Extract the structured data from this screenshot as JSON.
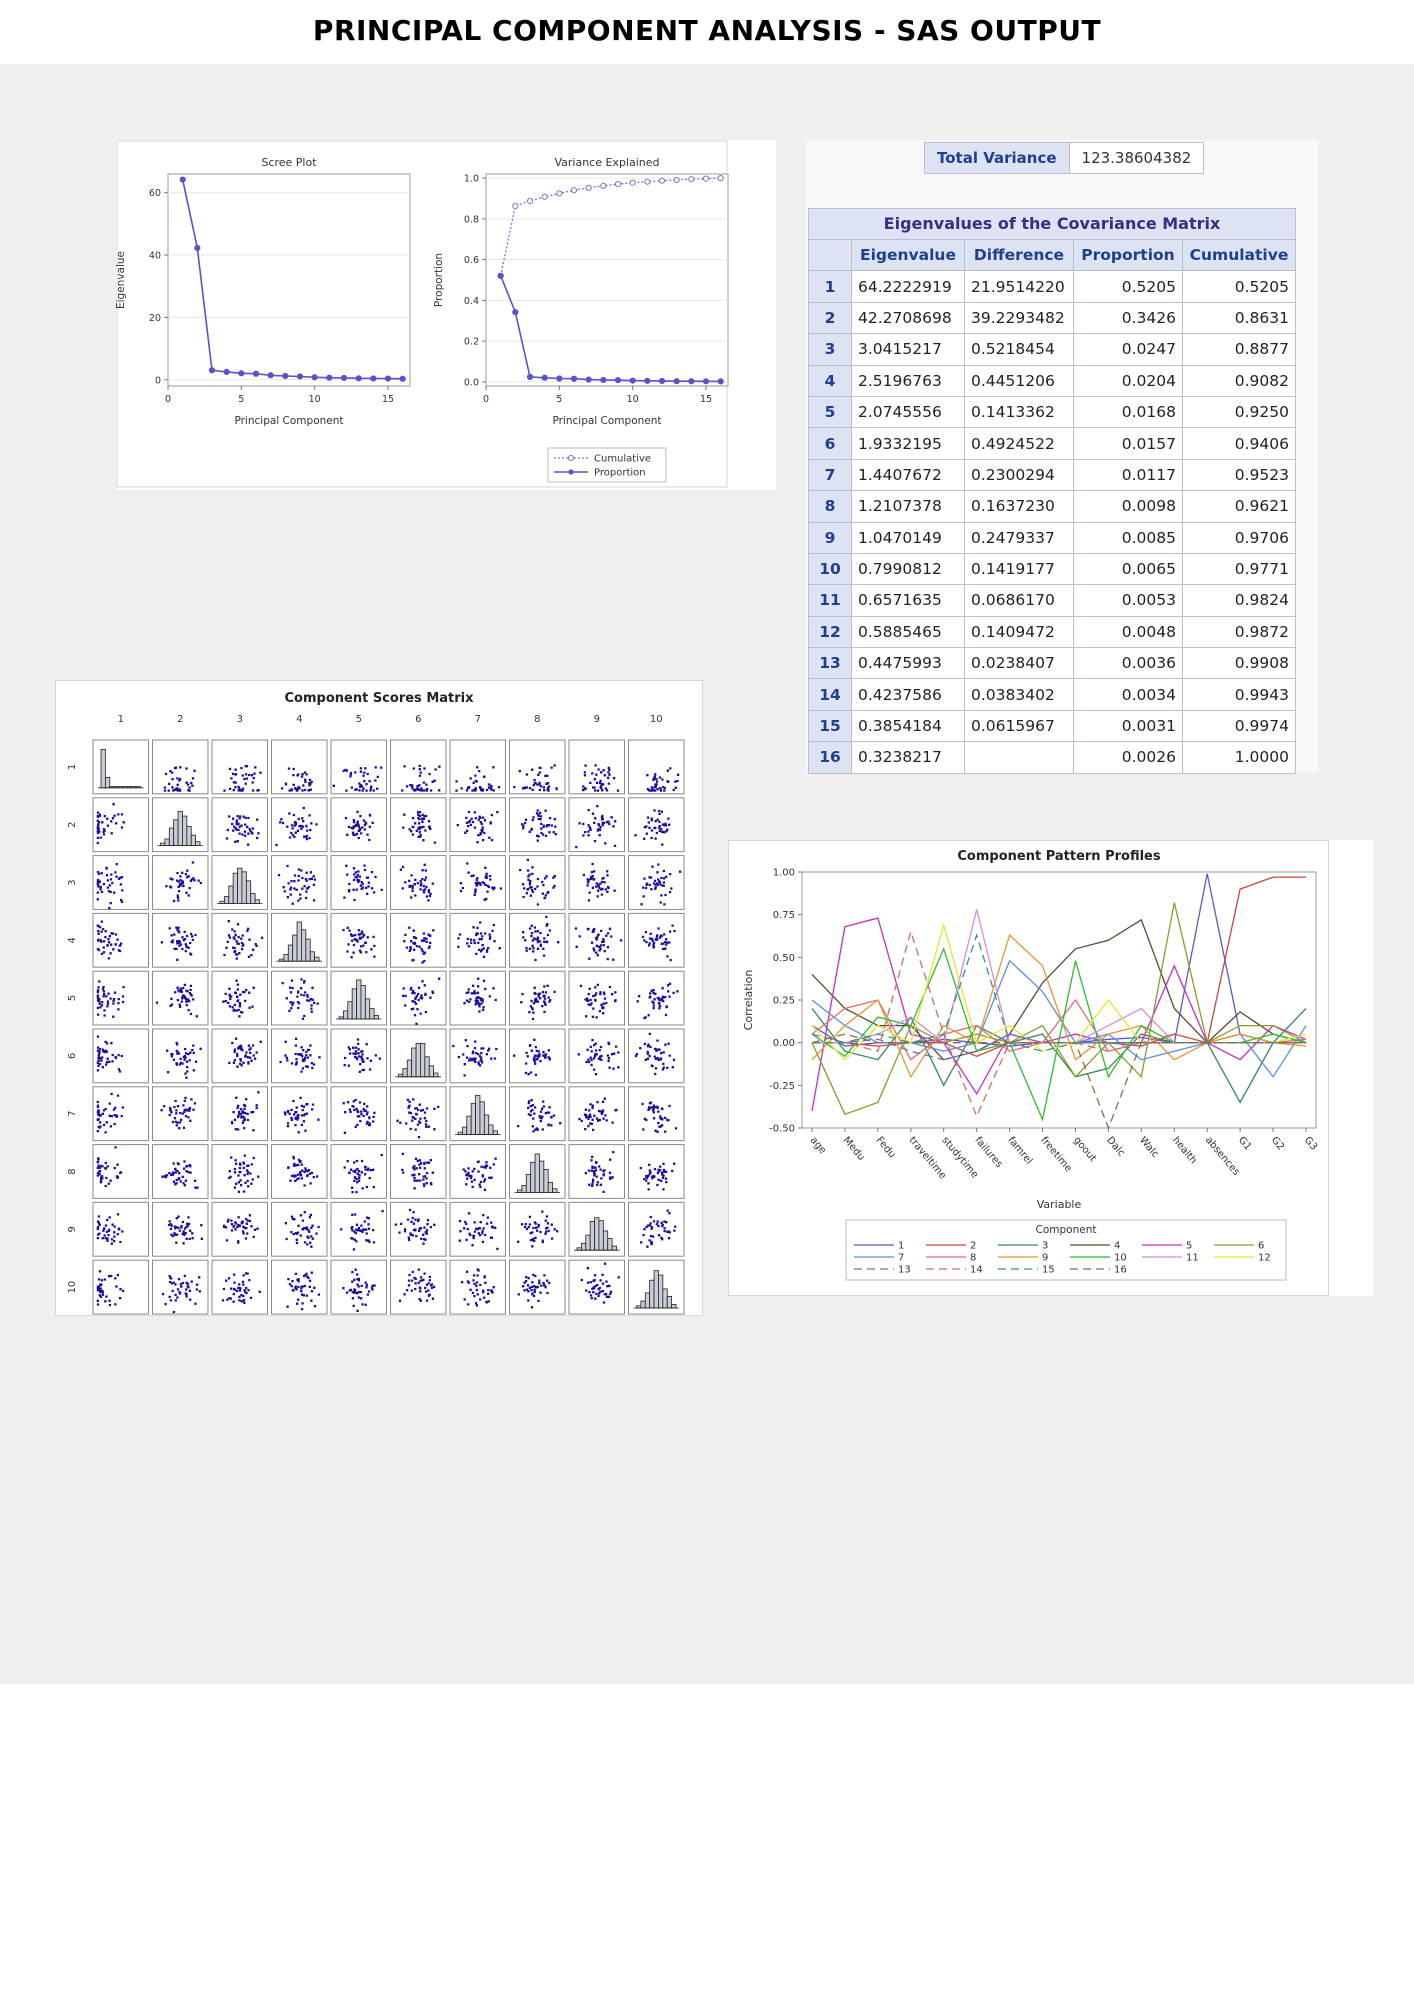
{
  "page_title": "PRINCIPAL COMPONENT ANALYSIS  - SAS OUTPUT",
  "colors": {
    "line": "#5a52c9",
    "cumulative": "#7a73d6",
    "point": "#1a0f9e",
    "table_header": "#dde3f2",
    "background": "#efefef"
  },
  "total_variance": {
    "label": "Total Variance",
    "value": "123.38604382"
  },
  "eigen_table": {
    "caption": "Eigenvalues of the Covariance Matrix",
    "columns": [
      "Eigenvalue",
      "Difference",
      "Proportion",
      "Cumulative"
    ],
    "rows": [
      {
        "n": "1",
        "eigenvalue": "64.2222919",
        "difference": "21.9514220",
        "proportion": "0.5205",
        "cumulative": "0.5205"
      },
      {
        "n": "2",
        "eigenvalue": "42.2708698",
        "difference": "39.2293482",
        "proportion": "0.3426",
        "cumulative": "0.8631"
      },
      {
        "n": "3",
        "eigenvalue": "3.0415217",
        "difference": "0.5218454",
        "proportion": "0.0247",
        "cumulative": "0.8877"
      },
      {
        "n": "4",
        "eigenvalue": "2.5196763",
        "difference": "0.4451206",
        "proportion": "0.0204",
        "cumulative": "0.9082"
      },
      {
        "n": "5",
        "eigenvalue": "2.0745556",
        "difference": "0.1413362",
        "proportion": "0.0168",
        "cumulative": "0.9250"
      },
      {
        "n": "6",
        "eigenvalue": "1.9332195",
        "difference": "0.4924522",
        "proportion": "0.0157",
        "cumulative": "0.9406"
      },
      {
        "n": "7",
        "eigenvalue": "1.4407672",
        "difference": "0.2300294",
        "proportion": "0.0117",
        "cumulative": "0.9523"
      },
      {
        "n": "8",
        "eigenvalue": "1.2107378",
        "difference": "0.1637230",
        "proportion": "0.0098",
        "cumulative": "0.9621"
      },
      {
        "n": "9",
        "eigenvalue": "1.0470149",
        "difference": "0.2479337",
        "proportion": "0.0085",
        "cumulative": "0.9706"
      },
      {
        "n": "10",
        "eigenvalue": "0.7990812",
        "difference": "0.1419177",
        "proportion": "0.0065",
        "cumulative": "0.9771"
      },
      {
        "n": "11",
        "eigenvalue": "0.6571635",
        "difference": "0.0686170",
        "proportion": "0.0053",
        "cumulative": "0.9824"
      },
      {
        "n": "12",
        "eigenvalue": "0.5885465",
        "difference": "0.1409472",
        "proportion": "0.0048",
        "cumulative": "0.9872"
      },
      {
        "n": "13",
        "eigenvalue": "0.4475993",
        "difference": "0.0238407",
        "proportion": "0.0036",
        "cumulative": "0.9908"
      },
      {
        "n": "14",
        "eigenvalue": "0.4237586",
        "difference": "0.0383402",
        "proportion": "0.0034",
        "cumulative": "0.9943"
      },
      {
        "n": "15",
        "eigenvalue": "0.3854184",
        "difference": "0.0615967",
        "proportion": "0.0031",
        "cumulative": "0.9974"
      },
      {
        "n": "16",
        "eigenvalue": "0.3238217",
        "difference": "",
        "proportion": "0.0026",
        "cumulative": "1.0000"
      }
    ]
  },
  "chart_data": [
    {
      "type": "line",
      "title": "Scree Plot",
      "xlabel": "Principal Component",
      "ylabel": "Eigenvalue",
      "x": [
        1,
        2,
        3,
        4,
        5,
        6,
        7,
        8,
        9,
        10,
        11,
        12,
        13,
        14,
        15,
        16
      ],
      "series": [
        {
          "values": [
            64.22,
            42.27,
            3.04,
            2.52,
            2.07,
            1.93,
            1.44,
            1.21,
            1.05,
            0.8,
            0.66,
            0.59,
            0.45,
            0.42,
            0.39,
            0.32
          ]
        }
      ],
      "xlim": [
        0,
        16.5
      ],
      "ylim": [
        -2,
        66
      ],
      "xticks": [
        "0",
        "5",
        "10",
        "15"
      ],
      "yticks": [
        "0",
        "20",
        "40",
        "60"
      ],
      "grid": true
    },
    {
      "type": "line",
      "title": "Variance Explained",
      "xlabel": "Principal Component",
      "ylabel": "Proportion",
      "x": [
        1,
        2,
        3,
        4,
        5,
        6,
        7,
        8,
        9,
        10,
        11,
        12,
        13,
        14,
        15,
        16
      ],
      "series": [
        {
          "name": "Cumulative",
          "style": "dotted",
          "values": [
            0.5205,
            0.8631,
            0.8877,
            0.9082,
            0.925,
            0.9406,
            0.9523,
            0.9621,
            0.9706,
            0.9771,
            0.9824,
            0.9872,
            0.9908,
            0.9943,
            0.9974,
            1.0
          ]
        },
        {
          "name": "Proportion",
          "style": "solid",
          "values": [
            0.5205,
            0.3426,
            0.0247,
            0.0204,
            0.0168,
            0.0157,
            0.0117,
            0.0098,
            0.0085,
            0.0065,
            0.0053,
            0.0048,
            0.0036,
            0.0034,
            0.0031,
            0.0026
          ]
        }
      ],
      "xlim": [
        0,
        16.5
      ],
      "ylim": [
        -0.02,
        1.02
      ],
      "xticks": [
        "0",
        "5",
        "10",
        "15"
      ],
      "yticks": [
        "0.0",
        "0.2",
        "0.4",
        "0.6",
        "0.8",
        "1.0"
      ],
      "legend": "bottom",
      "grid": true
    },
    {
      "type": "scatter",
      "title": "Component Scores Matrix",
      "components": [
        "1",
        "2",
        "3",
        "4",
        "5",
        "6",
        "7",
        "8",
        "9",
        "10"
      ],
      "diagonal": "histogram"
    },
    {
      "type": "line",
      "title": "Component Pattern Profiles",
      "xlabel": "Variable",
      "ylabel": "Correlation",
      "legend_title": "Component",
      "legend": "bottom",
      "categories": [
        "age",
        "Medu",
        "Fedu",
        "traveltime",
        "studytime",
        "failures",
        "famrel",
        "freetime",
        "goout",
        "Dalc",
        "Walc",
        "health",
        "absences",
        "G1",
        "G2",
        "G3"
      ],
      "yticks": [
        "-0.50",
        "-0.25",
        "0.00",
        "0.25",
        "0.50",
        "0.75",
        "1.00"
      ],
      "ylim": [
        -0.5,
        1.0
      ],
      "series": [
        {
          "name": "1",
          "color": "#5e57c9",
          "dash": "",
          "values": [
            0.1,
            -0.02,
            0.0,
            0.0,
            0.02,
            0.0,
            -0.02,
            0.0,
            0.0,
            0.02,
            0.03,
            0.0,
            0.99,
            0.05,
            0.0,
            0.0
          ]
        },
        {
          "name": "2",
          "color": "#c94343",
          "dash": "",
          "values": [
            0.0,
            0.0,
            -0.02,
            0.0,
            0.0,
            -0.08,
            0.0,
            0.0,
            0.0,
            0.0,
            -0.02,
            0.05,
            0.0,
            0.9,
            0.97,
            0.97
          ]
        },
        {
          "name": "3",
          "color": "#2e8b57",
          "dash": "",
          "values": [
            0.2,
            -0.05,
            -0.1,
            0.15,
            -0.25,
            0.1,
            0.0,
            0.05,
            -0.2,
            -0.15,
            0.05,
            0.0,
            0.0,
            -0.35,
            0.0,
            0.2
          ]
        },
        {
          "name": "4",
          "color": "#5c4a2e",
          "dash": "",
          "values": [
            0.4,
            0.2,
            0.1,
            0.1,
            -0.1,
            -0.05,
            0.05,
            0.35,
            0.55,
            0.6,
            0.72,
            0.2,
            0.0,
            0.18,
            0.05,
            0.0
          ]
        },
        {
          "name": "5",
          "color": "#c22fc2",
          "dash": "",
          "values": [
            -0.4,
            0.68,
            0.73,
            0.05,
            0.0,
            -0.3,
            0.05,
            0.0,
            0.05,
            0.0,
            0.0,
            0.45,
            0.0,
            -0.1,
            0.1,
            0.02
          ]
        },
        {
          "name": "6",
          "color": "#8a9a2a",
          "dash": "",
          "values": [
            0.0,
            -0.42,
            -0.35,
            0.1,
            0.0,
            0.05,
            0.0,
            0.1,
            -0.2,
            0.0,
            -0.2,
            0.82,
            0.0,
            0.1,
            0.1,
            0.0
          ]
        },
        {
          "name": "7",
          "color": "#5b8ee0",
          "dash": "",
          "values": [
            0.25,
            0.1,
            0.0,
            0.0,
            -0.05,
            0.0,
            0.48,
            0.3,
            0.0,
            0.05,
            -0.1,
            -0.05,
            0.0,
            0.05,
            -0.2,
            0.1
          ]
        },
        {
          "name": "8",
          "color": "#e06d6d",
          "dash": "",
          "values": [
            0.05,
            0.2,
            0.25,
            -0.1,
            0.05,
            0.1,
            -0.05,
            0.0,
            0.25,
            -0.05,
            0.0,
            0.0,
            0.0,
            0.0,
            0.0,
            0.02
          ]
        },
        {
          "name": "9",
          "color": "#e6952e",
          "dash": "",
          "values": [
            -0.1,
            0.1,
            0.25,
            -0.2,
            0.1,
            0.0,
            0.63,
            0.45,
            -0.1,
            0.05,
            0.1,
            -0.1,
            0.0,
            0.05,
            0.0,
            -0.02
          ]
        },
        {
          "name": "10",
          "color": "#2ebc2e",
          "dash": "",
          "values": [
            0.05,
            -0.08,
            0.15,
            0.1,
            0.55,
            -0.05,
            0.0,
            -0.45,
            0.48,
            -0.2,
            0.1,
            0.0,
            0.0,
            0.0,
            0.05,
            0.0
          ]
        },
        {
          "name": "11",
          "color": "#cf8fe0",
          "dash": "",
          "values": [
            0.0,
            0.0,
            0.05,
            0.15,
            0.0,
            0.78,
            0.0,
            0.0,
            0.0,
            0.1,
            0.2,
            0.0,
            0.0,
            0.0,
            0.0,
            0.0
          ]
        },
        {
          "name": "12",
          "color": "#e6e62e",
          "dash": "",
          "values": [
            0.1,
            -0.1,
            0.1,
            0.0,
            0.69,
            0.0,
            0.1,
            -0.05,
            0.0,
            0.25,
            0.0,
            0.0,
            0.0,
            0.0,
            0.0,
            0.05
          ]
        },
        {
          "name": "13",
          "color": "#6d6dc9",
          "dash": "8,5",
          "values": [
            0.05,
            0.0,
            0.02,
            -0.05,
            -0.1,
            -0.05,
            0.05,
            0.0,
            0.0,
            0.0,
            0.0,
            0.0,
            0.0,
            0.0,
            0.0,
            0.0
          ]
        },
        {
          "name": "14",
          "color": "#c96d6d",
          "dash": "8,5",
          "values": [
            0.0,
            0.0,
            -0.05,
            0.65,
            0.05,
            -0.43,
            0.0,
            0.0,
            0.0,
            -0.05,
            0.0,
            0.05,
            0.0,
            0.0,
            0.0,
            0.0
          ]
        },
        {
          "name": "15",
          "color": "#2e9e6d",
          "dash": "8,5",
          "values": [
            0.0,
            0.0,
            0.05,
            0.0,
            0.05,
            0.63,
            0.0,
            -0.05,
            0.0,
            0.0,
            0.0,
            0.0,
            0.0,
            0.0,
            0.0,
            0.0
          ]
        },
        {
          "name": "16",
          "color": "#8a6d4a",
          "dash": "8,5",
          "values": [
            0.0,
            0.05,
            0.0,
            0.0,
            0.0,
            0.0,
            0.0,
            0.0,
            0.0,
            -0.5,
            0.0,
            0.0,
            0.0,
            0.0,
            0.0,
            0.0
          ]
        }
      ]
    }
  ]
}
